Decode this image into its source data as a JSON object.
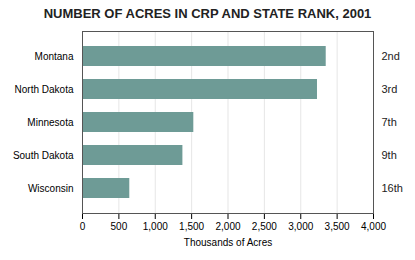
{
  "chart_data": {
    "type": "bar",
    "orientation": "horizontal",
    "title": "NUMBER OF ACRES IN CRP AND STATE RANK, 2001",
    "categories": [
      "Montana",
      "North Dakota",
      "Minnesota",
      "South Dakota",
      "Wisconsin"
    ],
    "values": [
      3350,
      3230,
      1530,
      1380,
      650
    ],
    "ranks": [
      "2nd",
      "3rd",
      "7th",
      "9th",
      "16th"
    ],
    "color": "#6e9b96",
    "xlabel": "Thousands of Acres",
    "xlim": [
      0,
      4000
    ],
    "xticks": [
      0,
      500,
      {
        "value": 1000,
        "label": "1,000"
      },
      {
        "value": 1500,
        "label": "1,500"
      },
      {
        "value": 2000,
        "label": "2,000"
      },
      {
        "value": 2500,
        "label": "2,500"
      },
      {
        "value": 3000,
        "label": "3,000"
      },
      {
        "value": 3500,
        "label": "3,500"
      },
      {
        "value": 4000,
        "label": "4,000"
      }
    ],
    "grid": true
  }
}
